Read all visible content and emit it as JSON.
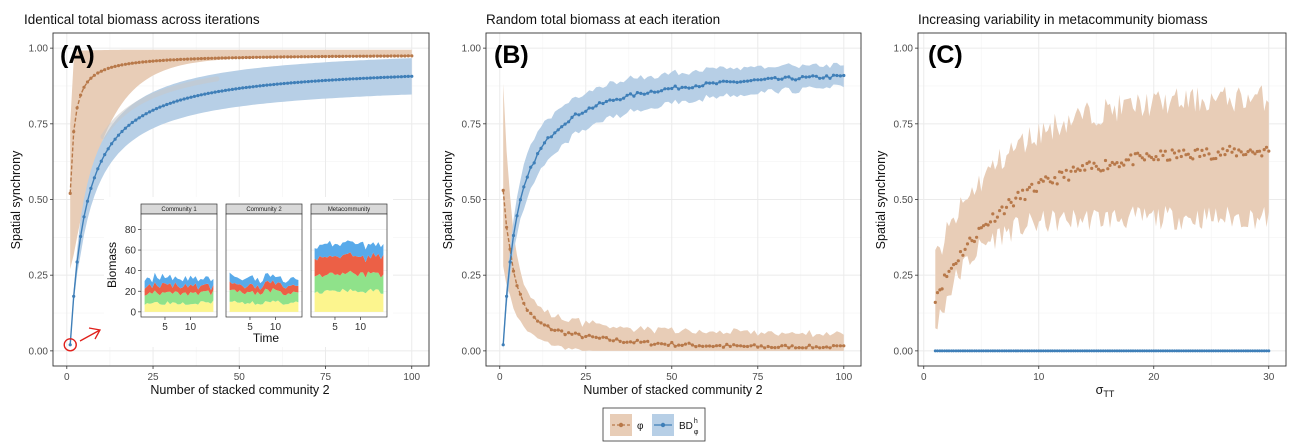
{
  "colors": {
    "phi": "#b8794a",
    "phi_band": "#e8cdb7",
    "bd": "#3f7fb8",
    "bd_band": "#b7cfe6",
    "grid": "#ebebeb",
    "gray_band": "#c8c8c8",
    "red": "#e0201b",
    "inset": {
      "yellow": "#fcf58e",
      "green": "#8fe28a",
      "red": "#ec6046",
      "blue": "#58aaea"
    }
  },
  "legend": {
    "items": [
      {
        "label": "φ",
        "color": "#b8794a"
      },
      {
        "label": "BD",
        "color": "#3f7fb8",
        "sup": "h",
        "sub": "φ"
      }
    ]
  },
  "chart_data": [
    {
      "type": "line",
      "panel": "(A)",
      "title": "Identical total biomass across iterations",
      "xlabel": "Number of stacked community 2",
      "ylabel": "Spatial synchrony",
      "xlim": [
        -4,
        105
      ],
      "ylim": [
        -0.05,
        1.05
      ],
      "xticks": [
        0,
        25,
        50,
        75,
        100
      ],
      "yticks": [
        "0.00",
        "0.25",
        "0.50",
        "0.75",
        "1.00"
      ],
      "series": [
        {
          "name": "φ",
          "style": "dashed",
          "x_start": 1,
          "x_end": 100,
          "y_start": 0.52,
          "y_end": 0.98,
          "model": "ratio",
          "k": 1.25,
          "band": [
            0.27,
            0.995
          ]
        },
        {
          "name": "BD",
          "style": "solid",
          "x_start": 1,
          "x_end": 100,
          "y_start": 0.02,
          "y_end": 0.95,
          "model": "ratio",
          "k": 4.8,
          "band_width": 0.06
        }
      ],
      "inset": {
        "facets": [
          "Community 1",
          "Community 2",
          "Metacommunity"
        ],
        "ylabel": "Biomass",
        "xlabel": "Time",
        "yticks": [
          "0",
          "20",
          "40",
          "60",
          "80"
        ],
        "xticks": [
          "5",
          "10"
        ]
      }
    },
    {
      "type": "line",
      "panel": "(B)",
      "title": "Random total biomass at each iteration",
      "xlabel": "Number of stacked community 2",
      "ylabel": "Spatial synchrony",
      "xlim": [
        -4,
        105
      ],
      "ylim": [
        -0.05,
        1.05
      ],
      "xticks": [
        0,
        25,
        50,
        75,
        100
      ],
      "yticks": [
        "0.00",
        "0.25",
        "0.50",
        "0.75",
        "1.00"
      ],
      "series": [
        {
          "name": "φ",
          "style": "dashed",
          "x_start": 1,
          "x_end": 100,
          "y_start": 0.53,
          "y_end": 0.01,
          "model": "decay"
        },
        {
          "name": "BD",
          "style": "solid",
          "x_start": 1,
          "x_end": 100,
          "y_start": 0.02,
          "y_end": 0.95,
          "model": "ratio",
          "k": 4.8
        }
      ]
    },
    {
      "type": "scatter",
      "panel": "(C)",
      "title": "Increasing variability in metacommunity biomass",
      "xlabel": "σTT",
      "ylabel": "Spatial synchrony",
      "xlim": [
        -0.5,
        31.5
      ],
      "ylim": [
        -0.05,
        1.05
      ],
      "xticks": [
        0,
        10,
        20,
        30
      ],
      "yticks": [
        "0.00",
        "0.25",
        "0.50",
        "0.75",
        "1.00"
      ],
      "series": [
        {
          "name": "φ",
          "x_start": 1,
          "x_end": 30,
          "y_start": 0.18,
          "y_end": 0.66,
          "band": [
            [
              0.07,
              0.3
            ],
            [
              0.44,
              0.84
            ]
          ]
        },
        {
          "name": "BD",
          "x_start": 1,
          "x_end": 30,
          "y_value": 0.0
        }
      ]
    }
  ]
}
